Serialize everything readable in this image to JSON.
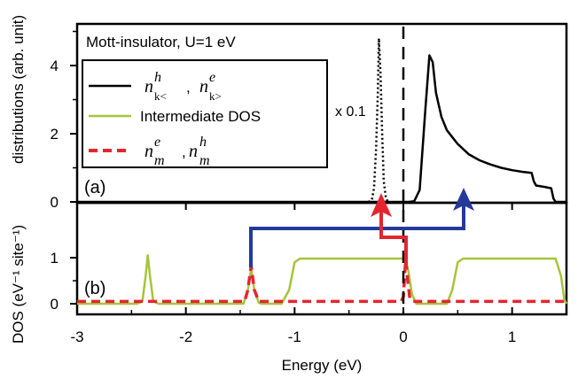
{
  "chart_data": {
    "type": "line",
    "xlabel": "Energy (eV)",
    "xlim": [
      -3,
      1.5
    ],
    "x_ticks": [
      "-3",
      "-2",
      "-1",
      "0",
      "1"
    ],
    "grid": false,
    "panels": [
      {
        "label": "(a)",
        "ylabel": "distributions (arb. unit)",
        "ylim": [
          0,
          5
        ],
        "y_ticks": [
          "0",
          "2",
          "4"
        ],
        "box_label": "Mott-insulator, U=1 eV",
        "annotation": "x 0.1",
        "legend_placement": "top-left",
        "series": [
          {
            "legend": "n_k<^h , n_k>^e",
            "color": "#000000",
            "style": "solid",
            "points": [
              [
                -3,
                0
              ],
              [
                0.05,
                0
              ],
              [
                0.1,
                0.02
              ],
              [
                0.15,
                0.35
              ],
              [
                0.2,
                2.6
              ],
              [
                0.24,
                4.3
              ],
              [
                0.27,
                4.1
              ],
              [
                0.3,
                3.2
              ],
              [
                0.35,
                2.5
              ],
              [
                0.4,
                2.1
              ],
              [
                0.5,
                1.7
              ],
              [
                0.6,
                1.4
              ],
              [
                0.7,
                1.22
              ],
              [
                0.8,
                1.1
              ],
              [
                0.9,
                1.0
              ],
              [
                1.0,
                0.93
              ],
              [
                1.1,
                0.88
              ],
              [
                1.18,
                0.85
              ],
              [
                1.2,
                0.6
              ],
              [
                1.22,
                0.48
              ],
              [
                1.3,
                0.44
              ],
              [
                1.36,
                0.4
              ],
              [
                1.38,
                0.1
              ],
              [
                1.4,
                0
              ],
              [
                1.5,
                0
              ]
            ]
          },
          {
            "legend": "",
            "color": "#000000",
            "style": "dotted",
            "points": [
              [
                -0.32,
                0
              ],
              [
                -0.29,
                0.05
              ],
              [
                -0.27,
                0.4
              ],
              [
                -0.25,
                1.6
              ],
              [
                -0.235,
                3.2
              ],
              [
                -0.225,
                4.8
              ],
              [
                -0.21,
                3.8
              ],
              [
                -0.195,
                2.0
              ],
              [
                -0.18,
                0.6
              ],
              [
                -0.16,
                0.1
              ],
              [
                -0.14,
                0
              ]
            ]
          }
        ]
      },
      {
        "label": "(b)",
        "ylabel": "DOS (eV⁻¹ site⁻¹)",
        "ylim": [
          0,
          1.5
        ],
        "y_ticks": [
          "0",
          "1"
        ],
        "series": [
          {
            "legend": "Intermediate DOS",
            "color": "#a6c43a",
            "style": "solid",
            "points": [
              [
                -3,
                0
              ],
              [
                -2.45,
                0
              ],
              [
                -2.4,
                0.05
              ],
              [
                -2.37,
                0.6
              ],
              [
                -2.35,
                1.05
              ],
              [
                -2.33,
                0.6
              ],
              [
                -2.3,
                0.05
              ],
              [
                -2.25,
                0
              ],
              [
                -1.47,
                0
              ],
              [
                -1.43,
                0.3
              ],
              [
                -1.4,
                0.75
              ],
              [
                -1.37,
                0.3
              ],
              [
                -1.33,
                0.02
              ],
              [
                -1.3,
                0
              ],
              [
                -1.12,
                0
              ],
              [
                -1.05,
                0.3
              ],
              [
                -1.0,
                0.9
              ],
              [
                -0.95,
                0.98
              ],
              [
                0.0,
                0.98
              ],
              [
                0.04,
                0.8
              ],
              [
                0.08,
                0.2
              ],
              [
                0.12,
                0
              ],
              [
                0.4,
                0
              ],
              [
                0.45,
                0.3
              ],
              [
                0.5,
                0.9
              ],
              [
                0.55,
                0.98
              ],
              [
                1.4,
                0.98
              ],
              [
                1.45,
                0.6
              ],
              [
                1.48,
                0.1
              ],
              [
                1.5,
                0
              ]
            ]
          },
          {
            "legend": "n_m^e , n_m^h",
            "color": "#e3262e",
            "style": "dashed",
            "points": [
              [
                -3,
                0.05
              ],
              [
                -1.46,
                0.05
              ],
              [
                -1.43,
                0.3
              ],
              [
                -1.4,
                0.82
              ],
              [
                -1.37,
                0.3
              ],
              [
                -1.33,
                0.05
              ],
              [
                -0.02,
                0.05
              ],
              [
                0.0,
                0.15
              ],
              [
                0.02,
                0.95
              ],
              [
                0.04,
                0.5
              ],
              [
                0.06,
                0.1
              ],
              [
                0.09,
                0.05
              ],
              [
                1.5,
                0.05
              ]
            ]
          }
        ]
      }
    ]
  },
  "legend": {
    "item1_base1": "n",
    "item1_sup1": "h",
    "item1_sub1": "k<",
    "item1_sep": ",",
    "item1_base2": "n",
    "item1_sup2": "e",
    "item1_sub2": "k>",
    "item2_label": "Intermediate DOS",
    "item3_base1": "n",
    "item3_sup1": "e",
    "item3_sub1": "m",
    "item3_sep": ",",
    "item3_base2": "n",
    "item3_sup2": "h",
    "item3_sub2": "m"
  },
  "arrows": {
    "red_color": "#e3262e",
    "blue_color": "#24399a"
  },
  "colors": {
    "frame": "#000000",
    "dashed_zero": "#000000"
  }
}
